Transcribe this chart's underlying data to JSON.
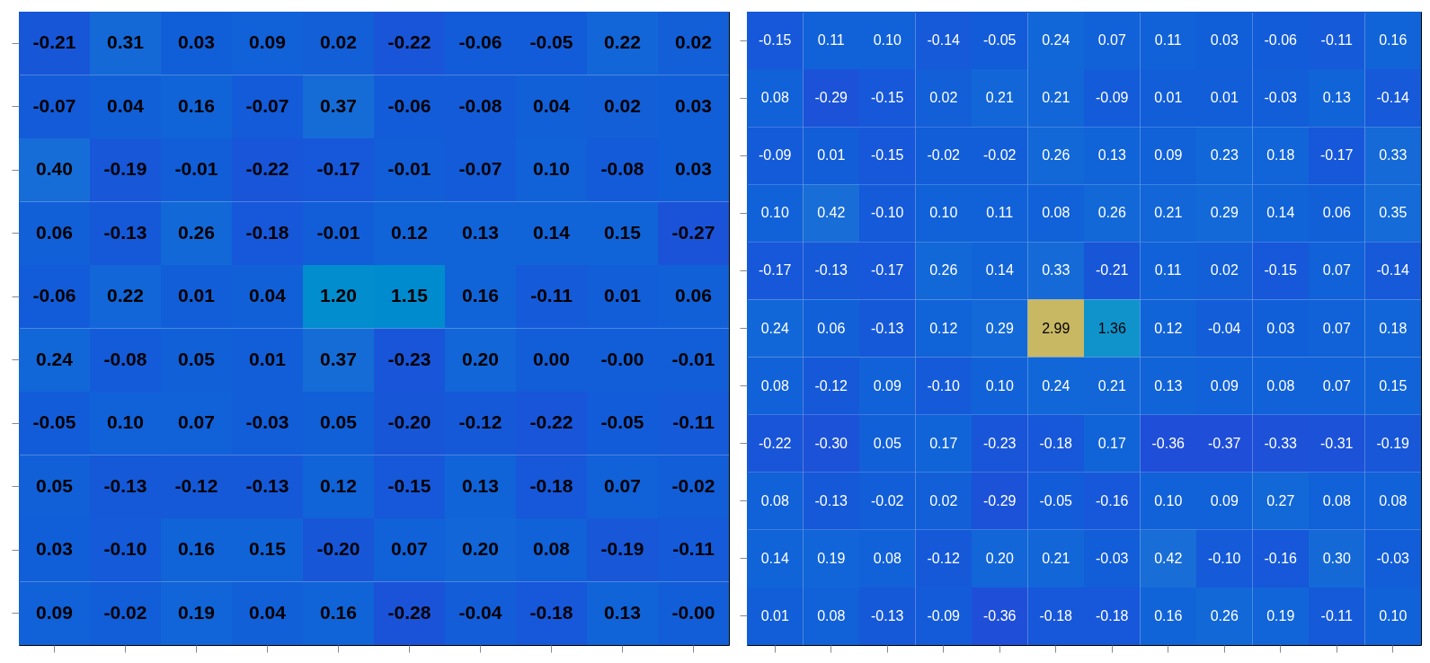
{
  "chart_data": [
    {
      "type": "heatmap",
      "categories": [
        null,
        null,
        null,
        null,
        null,
        null,
        null,
        null,
        null,
        null
      ],
      "y_categories": [
        null,
        null,
        null,
        null,
        null,
        null,
        null,
        null,
        null,
        null
      ],
      "cells": [
        [
          -0.21,
          0.31,
          0.03,
          0.09,
          0.02,
          -0.22,
          -0.06,
          -0.05,
          0.22,
          0.02
        ],
        [
          -0.07,
          0.04,
          0.16,
          -0.07,
          0.37,
          -0.06,
          -0.08,
          0.04,
          0.02,
          0.03
        ],
        [
          0.4,
          -0.19,
          -0.01,
          -0.22,
          -0.17,
          -0.01,
          -0.07,
          0.1,
          -0.08,
          0.03
        ],
        [
          0.06,
          -0.13,
          0.26,
          -0.18,
          -0.01,
          0.12,
          0.13,
          0.14,
          0.15,
          -0.27
        ],
        [
          -0.06,
          0.22,
          0.01,
          0.04,
          1.2,
          1.15,
          0.16,
          -0.11,
          0.01,
          0.06
        ],
        [
          0.24,
          -0.08,
          0.05,
          0.01,
          0.37,
          -0.23,
          0.2,
          0.0,
          -0.0,
          -0.01
        ],
        [
          -0.05,
          0.1,
          0.07,
          -0.03,
          0.05,
          -0.2,
          -0.12,
          -0.22,
          -0.05,
          -0.11
        ],
        [
          0.05,
          -0.13,
          -0.12,
          -0.13,
          0.12,
          -0.15,
          0.13,
          -0.18,
          0.07,
          -0.02
        ],
        [
          0.03,
          -0.1,
          0.16,
          0.15,
          -0.2,
          0.07,
          0.2,
          0.08,
          -0.19,
          -0.11
        ],
        [
          0.09,
          -0.02,
          0.19,
          0.04,
          0.16,
          -0.28,
          -0.04,
          -0.18,
          0.13,
          -0.0
        ]
      ],
      "cell_labels": [
        [
          "-0.21",
          "0.31",
          "0.03",
          "0.09",
          "0.02",
          "-0.22",
          "-0.06",
          "-0.05",
          "0.22",
          "0.02"
        ],
        [
          "-0.07",
          "0.04",
          "0.16",
          "-0.07",
          "0.37",
          "-0.06",
          "-0.08",
          "0.04",
          "0.02",
          "0.03"
        ],
        [
          "0.40",
          "-0.19",
          "-0.01",
          "-0.22",
          "-0.17",
          "-0.01",
          "-0.07",
          "0.10",
          "-0.08",
          "0.03"
        ],
        [
          "0.06",
          "-0.13",
          "0.26",
          "-0.18",
          "-0.01",
          "0.12",
          "0.13",
          "0.14",
          "0.15",
          "-0.27"
        ],
        [
          "-0.06",
          "0.22",
          "0.01",
          "0.04",
          "1.20",
          "1.15",
          "0.16",
          "-0.11",
          "0.01",
          "0.06"
        ],
        [
          "0.24",
          "-0.08",
          "0.05",
          "0.01",
          "0.37",
          "-0.23",
          "0.20",
          "0.00",
          "-0.00",
          "-0.01"
        ],
        [
          "-0.05",
          "0.10",
          "0.07",
          "-0.03",
          "0.05",
          "-0.20",
          "-0.12",
          "-0.22",
          "-0.05",
          "-0.11"
        ],
        [
          "0.05",
          "-0.13",
          "-0.12",
          "-0.13",
          "0.12",
          "-0.15",
          "0.13",
          "-0.18",
          "0.07",
          "-0.02"
        ],
        [
          "0.03",
          "-0.10",
          "0.16",
          "0.15",
          "-0.20",
          "0.07",
          "0.20",
          "0.08",
          "-0.19",
          "-0.11"
        ],
        [
          "0.09",
          "-0.02",
          "0.19",
          "0.04",
          "0.16",
          "-0.28",
          "-0.04",
          "-0.18",
          "0.13",
          "-0.00"
        ]
      ],
      "tick_labels": false
    },
    {
      "type": "heatmap",
      "categories": [
        null,
        null,
        null,
        null,
        null,
        null,
        null,
        null,
        null,
        null,
        null,
        null
      ],
      "y_categories": [
        null,
        null,
        null,
        null,
        null,
        null,
        null,
        null,
        null,
        null,
        null
      ],
      "cells": [
        [
          -0.15,
          0.11,
          0.1,
          -0.14,
          -0.05,
          0.24,
          0.07,
          0.11,
          0.03,
          -0.06,
          -0.11,
          0.16
        ],
        [
          0.08,
          -0.29,
          -0.15,
          0.02,
          0.21,
          0.21,
          -0.09,
          0.01,
          0.01,
          -0.03,
          0.13,
          -0.14
        ],
        [
          -0.09,
          0.01,
          -0.15,
          -0.02,
          -0.02,
          0.26,
          0.13,
          0.09,
          0.23,
          0.18,
          -0.17,
          0.33
        ],
        [
          0.1,
          0.42,
          -0.1,
          0.1,
          0.11,
          0.08,
          0.26,
          0.21,
          0.29,
          0.14,
          0.06,
          0.35
        ],
        [
          -0.17,
          -0.13,
          -0.17,
          0.26,
          0.14,
          0.33,
          -0.21,
          0.11,
          0.02,
          -0.15,
          0.07,
          -0.14
        ],
        [
          0.24,
          0.06,
          -0.13,
          0.12,
          0.29,
          2.99,
          1.36,
          0.12,
          -0.04,
          0.03,
          0.07,
          0.18
        ],
        [
          0.08,
          -0.12,
          0.09,
          -0.1,
          0.1,
          0.24,
          0.21,
          0.13,
          0.09,
          0.08,
          0.07,
          0.15
        ],
        [
          -0.22,
          -0.3,
          0.05,
          0.17,
          -0.23,
          -0.18,
          0.17,
          -0.36,
          -0.37,
          -0.33,
          -0.31,
          -0.19
        ],
        [
          0.08,
          -0.13,
          -0.02,
          0.02,
          -0.29,
          -0.05,
          -0.16,
          0.1,
          0.09,
          0.27,
          0.08,
          0.08
        ],
        [
          0.14,
          0.19,
          0.08,
          -0.12,
          0.2,
          0.21,
          -0.03,
          0.42,
          -0.1,
          -0.16,
          0.3,
          -0.03
        ],
        [
          0.01,
          0.08,
          -0.13,
          -0.09,
          -0.36,
          -0.18,
          -0.18,
          0.16,
          0.26,
          0.19,
          -0.11,
          0.1
        ]
      ],
      "cell_labels": [
        [
          "-0.15",
          "0.11",
          "0.10",
          "-0.14",
          "-0.05",
          "0.24",
          "0.07",
          "0.11",
          "0.03",
          "-0.06",
          "-0.11",
          "0.16"
        ],
        [
          "0.08",
          "-0.29",
          "-0.15",
          "0.02",
          "0.21",
          "0.21",
          "-0.09",
          "0.01",
          "0.01",
          "-0.03",
          "0.13",
          "-0.14"
        ],
        [
          "-0.09",
          "0.01",
          "-0.15",
          "-0.02",
          "-0.02",
          "0.26",
          "0.13",
          "0.09",
          "0.23",
          "0.18",
          "-0.17",
          "0.33"
        ],
        [
          "0.10",
          "0.42",
          "-0.10",
          "0.10",
          "0.11",
          "0.08",
          "0.26",
          "0.21",
          "0.29",
          "0.14",
          "0.06",
          "0.35"
        ],
        [
          "-0.17",
          "-0.13",
          "-0.17",
          "0.26",
          "0.14",
          "0.33",
          "-0.21",
          "0.11",
          "0.02",
          "-0.15",
          "0.07",
          "-0.14"
        ],
        [
          "0.24",
          "0.06",
          "-0.13",
          "0.12",
          "0.29",
          "2.99",
          "1.36",
          "0.12",
          "-0.04",
          "0.03",
          "0.07",
          "0.18"
        ],
        [
          "0.08",
          "-0.12",
          "0.09",
          "-0.10",
          "0.10",
          "0.24",
          "0.21",
          "0.13",
          "0.09",
          "0.08",
          "0.07",
          "0.15"
        ],
        [
          "-0.22",
          "-0.30",
          "0.05",
          "0.17",
          "-0.23",
          "-0.18",
          "0.17",
          "-0.36",
          "-0.37",
          "-0.33",
          "-0.31",
          "-0.19"
        ],
        [
          "0.08",
          "-0.13",
          "-0.02",
          "0.02",
          "-0.29",
          "-0.05",
          "-0.16",
          "0.10",
          "0.09",
          "0.27",
          "0.08",
          "0.08"
        ],
        [
          "0.14",
          "0.19",
          "0.08",
          "-0.12",
          "0.20",
          "0.21",
          "-0.03",
          "0.42",
          "-0.10",
          "-0.16",
          "0.30",
          "-0.03"
        ],
        [
          "0.01",
          "0.08",
          "-0.13",
          "-0.09",
          "-0.36",
          "-0.18",
          "-0.18",
          "0.16",
          "0.26",
          "0.19",
          "-0.11",
          "0.10"
        ]
      ],
      "tick_labels": false
    }
  ]
}
